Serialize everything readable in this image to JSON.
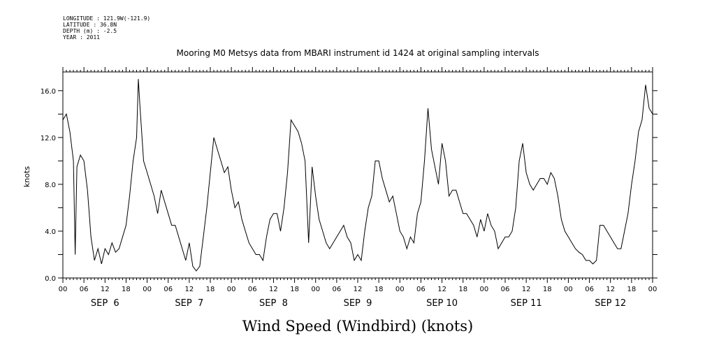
{
  "metadata": {
    "longitude": "LONGITUDE : 121.9W(-121.9)",
    "latitude": "LATITUDE : 36.8N",
    "depth": "DEPTH (m) : -2.5",
    "year": "YEAR : 2011"
  },
  "chart_data": {
    "type": "line",
    "title": "Mooring M0 Metsys data from MBARI instrument id 1424 at original sampling intervals",
    "ylabel": "knots",
    "xlabel": "Wind Speed (Windbird) (knots)",
    "ylim": [
      0,
      17.6
    ],
    "yticks": [
      0.0,
      4.0,
      8.0,
      12.0,
      16.0
    ],
    "ytick_labels": [
      "0.0",
      "4.0",
      "8.0",
      "12.0",
      "16.0"
    ],
    "xlim_hours": [
      0,
      168
    ],
    "hour_tick_labels": [
      "00",
      "06",
      "12",
      "18",
      "00",
      "06",
      "12",
      "18",
      "00",
      "06",
      "12",
      "18",
      "00",
      "06",
      "12",
      "18",
      "00",
      "06",
      "12",
      "18",
      "00",
      "06",
      "12",
      "18",
      "00",
      "06",
      "12",
      "18",
      "00"
    ],
    "day_labels": [
      "SEP  6",
      "SEP  7",
      "SEP  8",
      "SEP  9",
      "SEP 10",
      "SEP 11",
      "SEP 12"
    ],
    "series": [
      {
        "x": [
          0,
          1,
          2,
          3,
          3.5,
          4,
          5,
          6,
          7,
          8,
          9,
          10,
          11,
          12,
          13,
          14,
          15,
          16,
          17,
          18,
          19,
          20,
          21,
          21.5,
          22,
          23,
          24,
          25,
          26,
          27,
          28,
          29,
          30,
          31,
          32,
          33,
          34,
          35,
          36,
          37,
          38,
          39,
          40,
          41,
          42,
          43,
          44,
          45,
          46,
          47,
          48,
          49,
          50,
          51,
          52,
          53,
          54,
          55,
          56,
          57,
          58,
          59,
          60,
          61,
          62,
          63,
          64,
          65,
          66,
          67,
          68,
          69,
          70,
          71,
          72,
          73,
          74,
          75,
          76,
          77,
          78,
          79,
          80,
          81,
          82,
          83,
          84,
          85,
          86,
          87,
          88,
          89,
          90,
          91,
          92,
          93,
          94,
          95,
          96,
          97,
          98,
          99,
          100,
          101,
          102,
          103,
          104,
          105,
          106,
          107,
          108,
          109,
          110,
          111,
          112,
          113,
          114,
          115,
          116,
          117,
          118,
          119,
          120,
          121,
          122,
          123,
          124,
          125,
          126,
          127,
          128,
          129,
          130,
          131,
          132,
          133,
          134,
          135,
          136,
          137,
          138,
          139,
          140,
          141,
          142,
          143,
          144,
          145,
          146,
          147,
          148,
          149,
          150,
          151,
          152,
          153,
          154,
          155,
          156,
          157,
          158,
          159,
          160,
          161,
          162,
          163,
          164,
          165,
          166,
          167,
          168
        ],
        "values": [
          13.5,
          14.0,
          12.5,
          10.0,
          2.0,
          9.5,
          10.5,
          10.0,
          7.5,
          3.5,
          1.5,
          2.5,
          1.2,
          2.5,
          2.0,
          3.0,
          2.2,
          2.5,
          3.5,
          4.5,
          7.0,
          10.0,
          12.0,
          17.0,
          14.5,
          10.0,
          9.0,
          8.0,
          7.0,
          5.5,
          7.5,
          6.5,
          5.5,
          4.5,
          4.5,
          3.5,
          2.5,
          1.5,
          3.0,
          1.0,
          0.6,
          1.0,
          3.5,
          6.0,
          9.0,
          12.0,
          11.0,
          10.0,
          9.0,
          9.5,
          7.5,
          6.0,
          6.5,
          5.0,
          4.0,
          3.0,
          2.5,
          2.0,
          2.0,
          1.5,
          3.5,
          5.0,
          5.5,
          5.5,
          4.0,
          6.0,
          9.0,
          13.5,
          13.0,
          12.5,
          11.5,
          10.0,
          3.0,
          9.5,
          7.0,
          5.0,
          4.0,
          3.0,
          2.5,
          3.0,
          3.5,
          4.0,
          4.5,
          3.5,
          3.0,
          1.5,
          2.0,
          1.5,
          4.0,
          6.0,
          7.0,
          10.0,
          10.0,
          8.5,
          7.5,
          6.5,
          7.0,
          5.5,
          4.0,
          3.5,
          2.5,
          3.5,
          3.0,
          5.5,
          6.5,
          10.0,
          14.5,
          11.0,
          9.5,
          8.0,
          11.5,
          10.0,
          7.0,
          7.5,
          7.5,
          6.5,
          5.5,
          5.5,
          5.0,
          4.5,
          3.5,
          5.0,
          4.0,
          5.5,
          4.5,
          4.0,
          2.5,
          3.0,
          3.5,
          3.5,
          4.0,
          6.0,
          10.0,
          11.5,
          9.0,
          8.0,
          7.5,
          8.0,
          8.5,
          8.5,
          8.0,
          9.0,
          8.5,
          7.0,
          5.0,
          4.0,
          3.5,
          3.0,
          2.5,
          2.2,
          2.0,
          1.5,
          1.5,
          1.2,
          1.5,
          4.5,
          4.5,
          4.0,
          3.5,
          3.0,
          2.5,
          2.5,
          4.0,
          5.5,
          8.0,
          10.0,
          12.5,
          13.5,
          16.5,
          14.5,
          14.0
        ]
      }
    ],
    "grid": false,
    "line_color": "#000000"
  }
}
